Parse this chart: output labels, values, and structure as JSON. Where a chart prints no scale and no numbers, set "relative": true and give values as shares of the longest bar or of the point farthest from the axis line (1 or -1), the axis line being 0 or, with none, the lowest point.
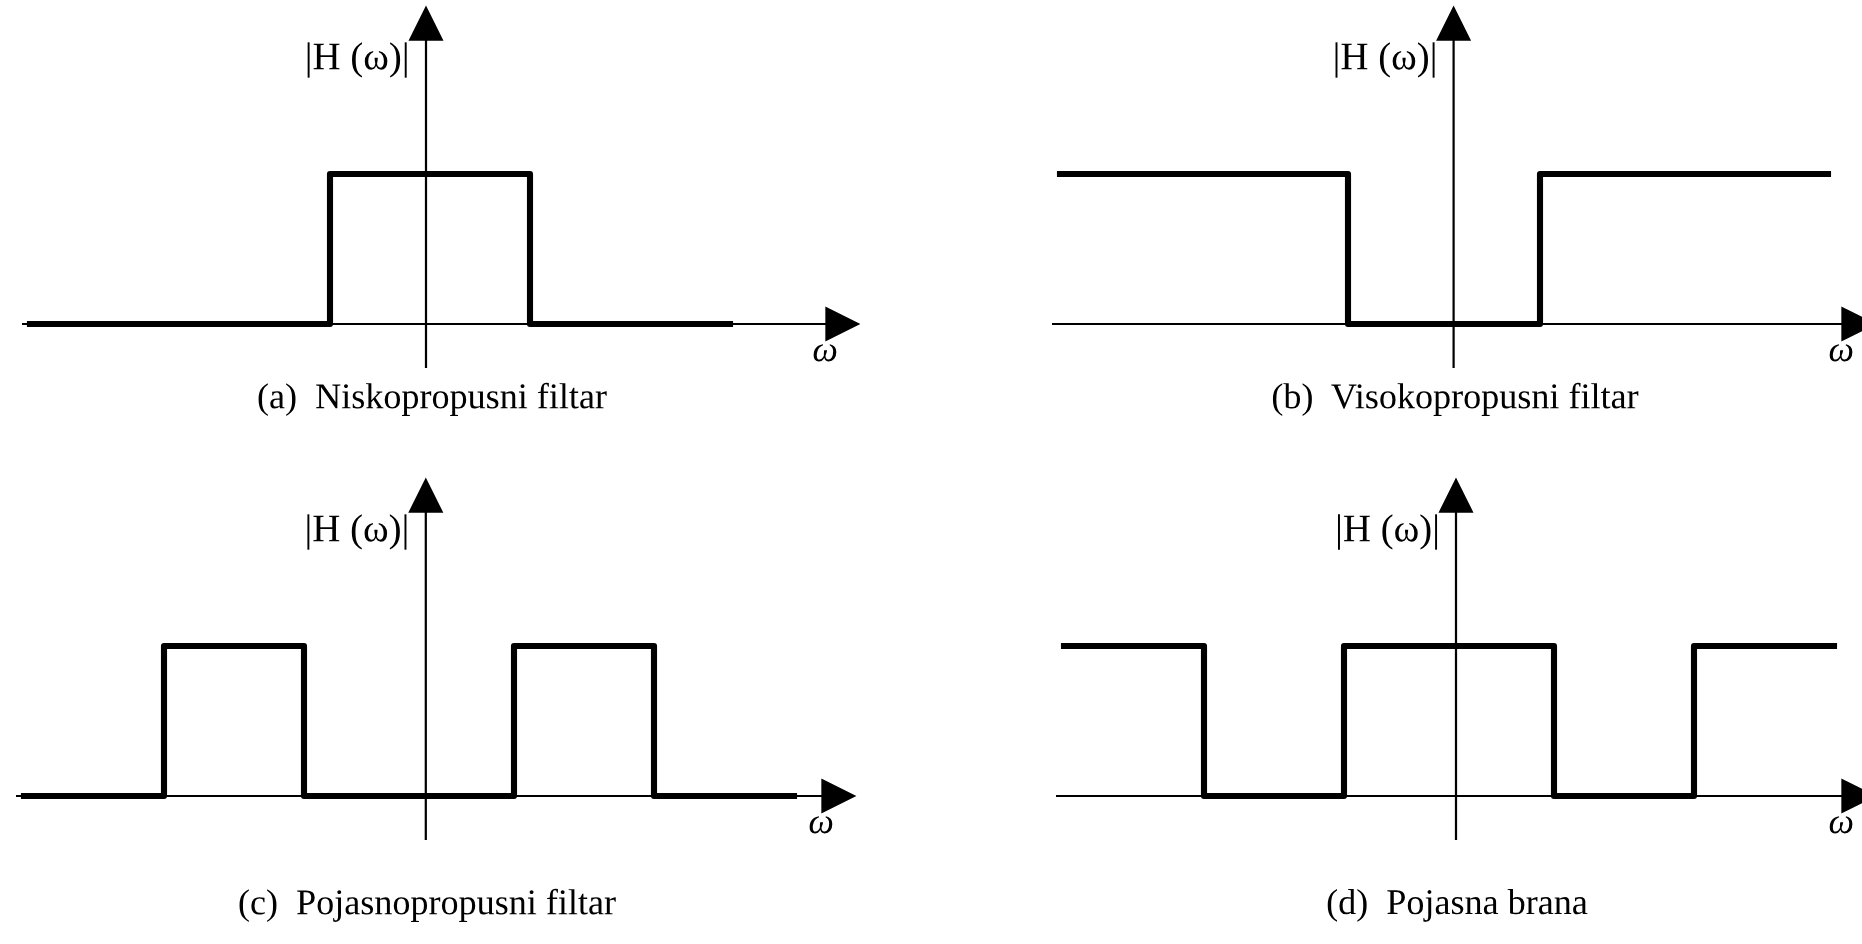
{
  "chart_data": [
    {
      "type": "step",
      "title": "(a)  Niskopropusni filtar",
      "xlabel": "ω",
      "ylabel": "|H (ω)|",
      "relative": true,
      "color": "#000000",
      "categories": [
        null,
        null,
        null,
        null,
        null,
        null,
        null,
        null
      ],
      "values": [
        0,
        0,
        0,
        1,
        1,
        0,
        0,
        0
      ]
    },
    {
      "type": "step",
      "title": "(b)  Visokopropusni filtar",
      "xlabel": "ω",
      "ylabel": "|H (ω)|",
      "relative": true,
      "color": "#000000",
      "categories": [
        null,
        null,
        null,
        null,
        null,
        null,
        null,
        null,
        null
      ],
      "values": [
        1,
        1,
        1,
        0,
        0,
        1,
        1,
        1,
        1
      ]
    },
    {
      "type": "step",
      "title": "(c)  Pojasnopropusni filtar",
      "xlabel": "ω",
      "ylabel": "|H (ω)|",
      "relative": true,
      "color": "#000000",
      "categories": [
        null,
        null,
        null,
        null,
        null,
        null,
        null,
        null,
        null,
        null,
        null,
        null
      ],
      "values": [
        0,
        0,
        1,
        1,
        0,
        0,
        0,
        1,
        1,
        0,
        0,
        0
      ]
    },
    {
      "type": "step",
      "title": "(d)  Pojasna brana",
      "xlabel": "ω",
      "ylabel": "|H (ω)|",
      "relative": true,
      "color": "#000000",
      "categories": [
        null,
        null,
        null,
        null,
        null,
        null,
        null,
        null,
        null,
        null,
        null,
        null
      ],
      "values": [
        1,
        1,
        0,
        0,
        1,
        1,
        1,
        0,
        0,
        1,
        1,
        1
      ]
    }
  ]
}
